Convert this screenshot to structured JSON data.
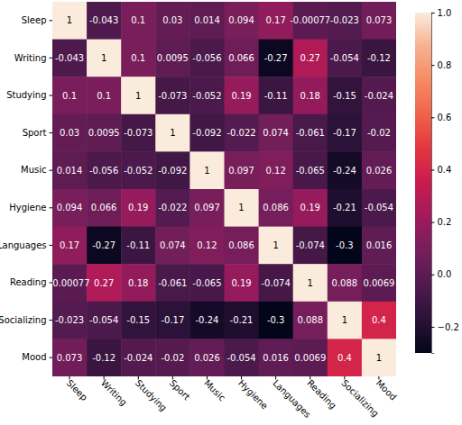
{
  "chart_data": {
    "type": "heatmap",
    "categories": [
      "Sleep",
      "Writing",
      "Studying",
      "Sport",
      "Music",
      "Hygiene",
      "Languages",
      "Reading",
      "Socializing",
      "Mood"
    ],
    "values": [
      [
        1,
        -0.043,
        0.1,
        0.03,
        0.014,
        0.094,
        0.17,
        -0.00077,
        -0.023,
        0.073
      ],
      [
        -0.043,
        1,
        0.1,
        0.0095,
        -0.056,
        0.066,
        -0.27,
        0.27,
        -0.054,
        -0.12
      ],
      [
        0.1,
        0.1,
        1,
        -0.073,
        -0.052,
        0.19,
        -0.11,
        0.18,
        -0.15,
        -0.024
      ],
      [
        0.03,
        0.0095,
        -0.073,
        1,
        -0.092,
        -0.022,
        0.074,
        -0.061,
        -0.17,
        -0.02
      ],
      [
        0.014,
        -0.056,
        -0.052,
        -0.092,
        1,
        0.097,
        0.12,
        -0.065,
        -0.24,
        0.026
      ],
      [
        0.094,
        0.066,
        0.19,
        -0.022,
        0.097,
        1,
        0.086,
        0.19,
        -0.21,
        -0.054
      ],
      [
        0.17,
        -0.27,
        -0.11,
        0.074,
        0.12,
        0.086,
        1,
        -0.074,
        -0.3,
        0.016
      ],
      [
        -0.00077,
        0.27,
        0.18,
        -0.061,
        -0.065,
        0.19,
        -0.074,
        1,
        0.088,
        0.0069
      ],
      [
        -0.023,
        -0.054,
        -0.15,
        -0.17,
        -0.24,
        -0.21,
        -0.3,
        0.088,
        1,
        0.4
      ],
      [
        0.073,
        -0.12,
        -0.024,
        -0.02,
        0.026,
        -0.054,
        0.016,
        0.0069,
        0.4,
        1
      ]
    ],
    "data_labels": true,
    "colorbar_range": [
      -0.3,
      1
    ],
    "colorbar_ticks": [
      {
        "value": -0.2,
        "label": "−0.2"
      },
      {
        "value": 0,
        "label": "0.0"
      },
      0.2,
      0.4,
      0.6,
      0.8,
      {
        "value": 1,
        "label": "1.0"
      }
    ]
  }
}
